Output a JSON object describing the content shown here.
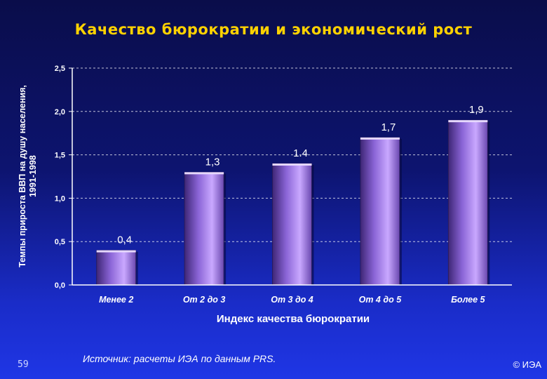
{
  "title": "Качество бюрократии и экономический рост",
  "footer": {
    "page_number": "59",
    "source": "Источник:  расчеты ИЭА по данным PRS.",
    "copyright": "© ИЭА"
  },
  "colors": {
    "title": "#ffd200",
    "bar_light": "#c9a8ff",
    "bar_dark": "#4a2e86",
    "axis": "#ffffff"
  },
  "chart_data": {
    "type": "bar",
    "title": "Качество бюрократии и экономический рост",
    "xlabel": "Индекс качества бюрократии",
    "ylabel": "Темпы прироста ВВП на душу населения, 1991-1998",
    "ylabel_lines": [
      "Темпы прироста ВВП на душу населения,",
      "1991-1998"
    ],
    "categories": [
      "Менее 2",
      "От 2 до 3",
      "От 3 до 4",
      "От 4 до 5",
      "Более 5"
    ],
    "values": [
      0.4,
      1.3,
      1.4,
      1.7,
      1.9
    ],
    "value_labels": [
      "0,4",
      "1,3",
      "1.4",
      "1,7",
      "1,9"
    ],
    "ylim": [
      0,
      2.5
    ],
    "yticks": [
      0,
      0.5,
      1.0,
      1.5,
      2.0,
      2.5
    ],
    "ytick_labels": [
      "0,0",
      "0,5",
      "1,0",
      "1,5",
      "2,0",
      "2,5"
    ],
    "grid": true,
    "legend": "none"
  }
}
